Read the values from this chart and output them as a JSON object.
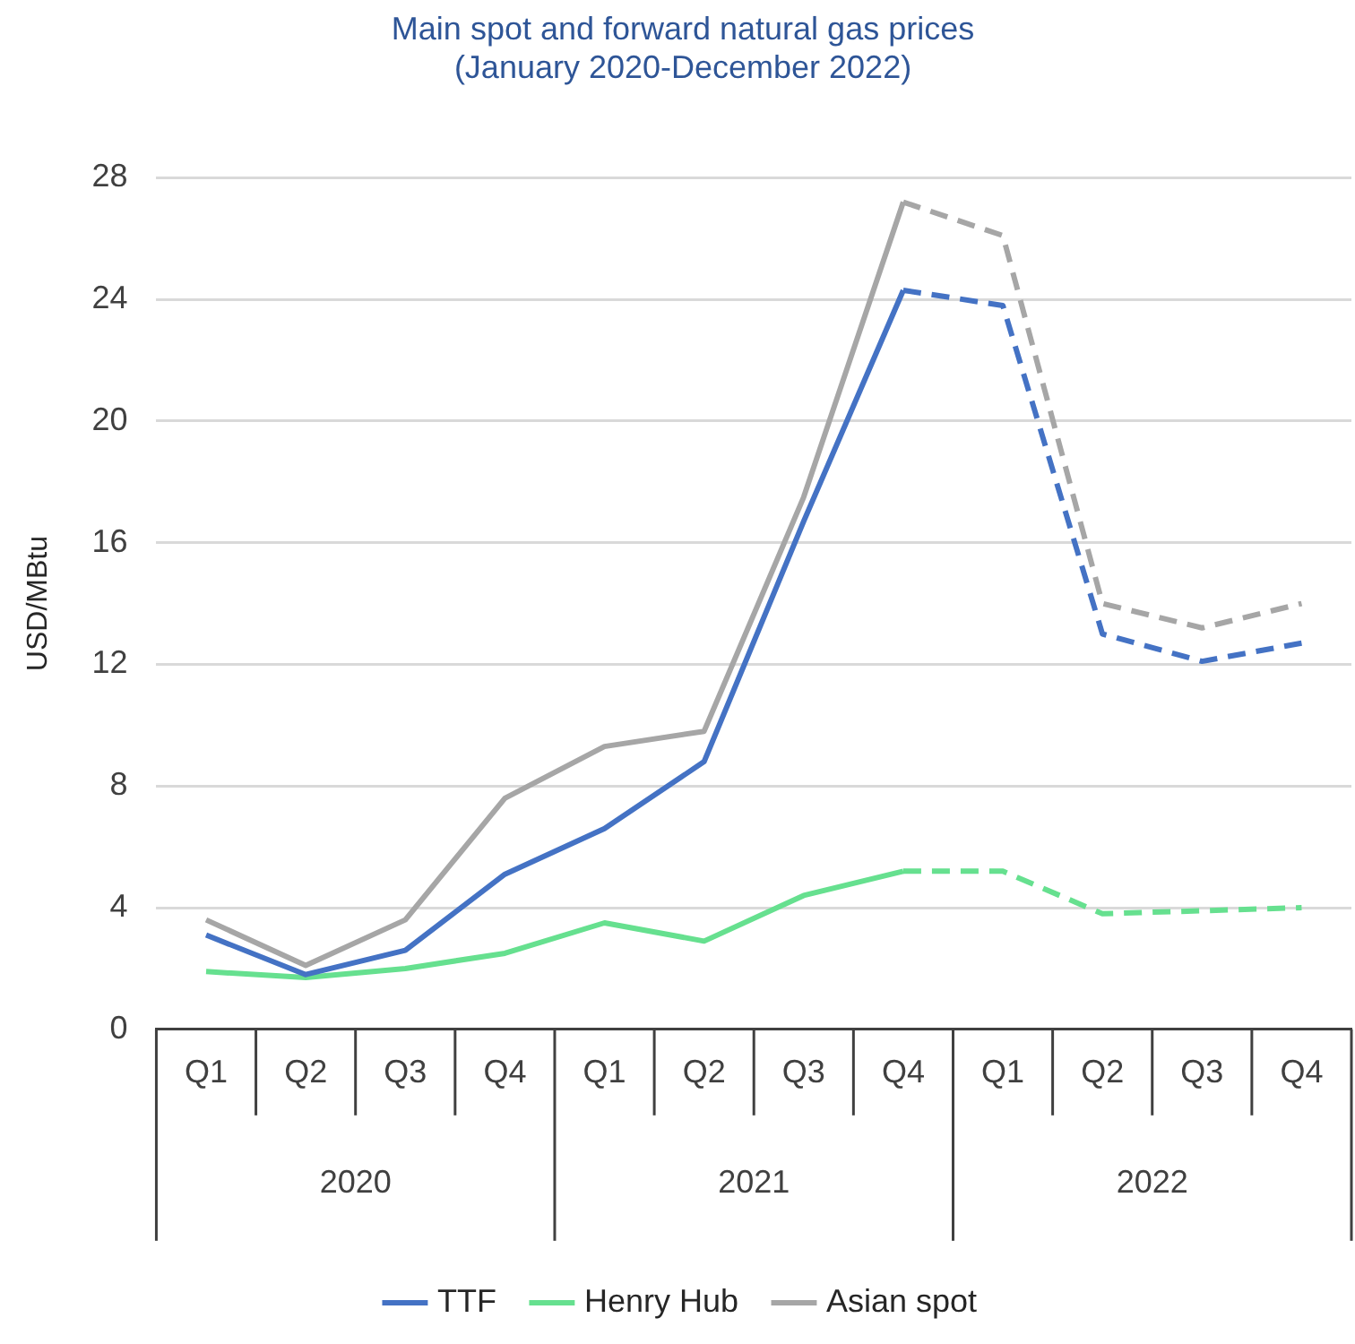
{
  "chart_data": {
    "type": "line",
    "title": "Main spot and forward natural gas prices\n(January 2020-December 2022)",
    "ylabel": "USD/MBtu",
    "categories": [
      "Q1",
      "Q2",
      "Q3",
      "Q4",
      "Q1",
      "Q2",
      "Q3",
      "Q4",
      "Q1",
      "Q2",
      "Q3",
      "Q4"
    ],
    "annotations": [
      "2020",
      "2021",
      "2022"
    ],
    "ylim": [
      0,
      28
    ],
    "yticks": [
      0,
      4,
      8,
      12,
      16,
      20,
      24,
      28
    ],
    "grid": "y",
    "legend": "bottom",
    "marker": "none",
    "series": [
      {
        "name": "TTF",
        "color": "#4472c4",
        "line_style": "solid",
        "values": [
          3.1,
          1.8,
          2.6,
          5.1,
          6.6,
          8.8,
          16.7,
          24.3,
          null,
          null,
          null,
          null
        ]
      },
      {
        "name": "Henry Hub",
        "color": "#66e08f",
        "line_style": "solid",
        "values": [
          1.9,
          1.7,
          2.0,
          2.5,
          3.5,
          2.9,
          4.4,
          5.2,
          null,
          null,
          null,
          null
        ]
      },
      {
        "name": "Asian spot",
        "color": "#a6a6a6",
        "line_style": "solid",
        "values": [
          3.6,
          2.1,
          3.6,
          7.6,
          9.3,
          9.8,
          17.5,
          27.2,
          null,
          null,
          null,
          null
        ]
      },
      {
        "color": "#4472c4",
        "line_style": "dashed",
        "values": [
          null,
          null,
          null,
          null,
          null,
          null,
          null,
          24.3,
          23.8,
          13.0,
          12.1,
          12.7
        ]
      },
      {
        "color": "#66e08f",
        "line_style": "dashed",
        "values": [
          null,
          null,
          null,
          null,
          null,
          null,
          null,
          5.2,
          5.2,
          3.8,
          3.9,
          4.0
        ]
      },
      {
        "color": "#a6a6a6",
        "line_style": "dashed",
        "values": [
          null,
          null,
          null,
          null,
          null,
          null,
          null,
          27.2,
          26.1,
          14.0,
          13.2,
          14.0
        ]
      }
    ]
  }
}
